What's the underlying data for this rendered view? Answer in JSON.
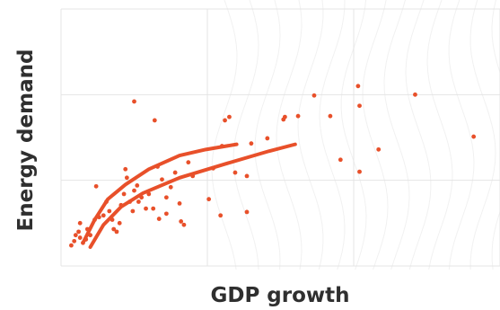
{
  "chart_data": {
    "type": "scatter",
    "xlabel": "GDP growth",
    "ylabel": "Energy demand",
    "color": "#e8502a",
    "grid": true,
    "xlim": [
      0,
      3
    ],
    "ylim": [
      0,
      3
    ],
    "xticks": [
      0,
      1,
      2,
      3
    ],
    "yticks": [
      0,
      1,
      2,
      3
    ],
    "x": [
      0.07,
      0.09,
      0.1,
      0.12,
      0.13,
      0.15,
      0.17,
      0.13,
      0.18,
      0.2,
      0.23,
      0.24,
      0.26,
      0.29,
      0.31,
      0.33,
      0.35,
      0.36,
      0.38,
      0.4,
      0.41,
      0.43,
      0.44,
      0.45,
      0.47,
      0.49,
      0.5,
      0.52,
      0.53,
      0.55,
      0.58,
      0.6,
      0.63,
      0.64,
      0.66,
      0.67,
      0.69,
      0.72,
      0.75,
      0.78,
      0.81,
      0.82,
      0.84,
      0.87,
      0.9,
      1.01,
      1.04,
      1.09,
      1.12,
      1.15,
      1.1,
      1.19,
      1.27,
      1.27,
      1.3,
      1.41,
      1.52,
      1.53,
      1.62,
      1.73,
      1.84,
      1.91,
      2.03,
      2.04,
      2.04,
      2.17,
      2.42,
      2.82,
      0.5,
      0.72
    ],
    "y": [
      0.24,
      0.29,
      0.36,
      0.4,
      0.33,
      0.27,
      0.31,
      0.5,
      0.43,
      0.36,
      0.54,
      0.93,
      0.57,
      0.59,
      0.75,
      0.64,
      0.54,
      0.43,
      0.4,
      0.5,
      0.71,
      0.84,
      1.13,
      1.03,
      0.75,
      0.64,
      0.88,
      0.94,
      0.75,
      0.8,
      0.67,
      0.84,
      0.67,
      1.7,
      1.16,
      0.55,
      1.01,
      0.8,
      0.92,
      1.09,
      0.73,
      0.52,
      0.48,
      1.21,
      1.05,
      0.78,
      1.14,
      0.59,
      1.7,
      1.74,
      1.4,
      1.09,
      1.05,
      0.63,
      1.43,
      1.49,
      1.71,
      1.74,
      1.75,
      1.99,
      1.75,
      1.24,
      2.1,
      1.87,
      1.1,
      1.36,
      2.0,
      1.51,
      1.92,
      0.61
    ],
    "lines": [
      {
        "x": [
          0.15,
          0.23,
          0.32,
          0.44,
          0.6,
          0.81,
          0.99,
          1.2
        ],
        "values": [
          0.27,
          0.54,
          0.78,
          0.95,
          1.13,
          1.29,
          1.36,
          1.42
        ]
      },
      {
        "x": [
          0.2,
          0.29,
          0.41,
          0.56,
          0.81,
          1.12,
          1.42,
          1.6
        ],
        "values": [
          0.22,
          0.48,
          0.69,
          0.85,
          1.03,
          1.19,
          1.34,
          1.42
        ]
      }
    ]
  }
}
